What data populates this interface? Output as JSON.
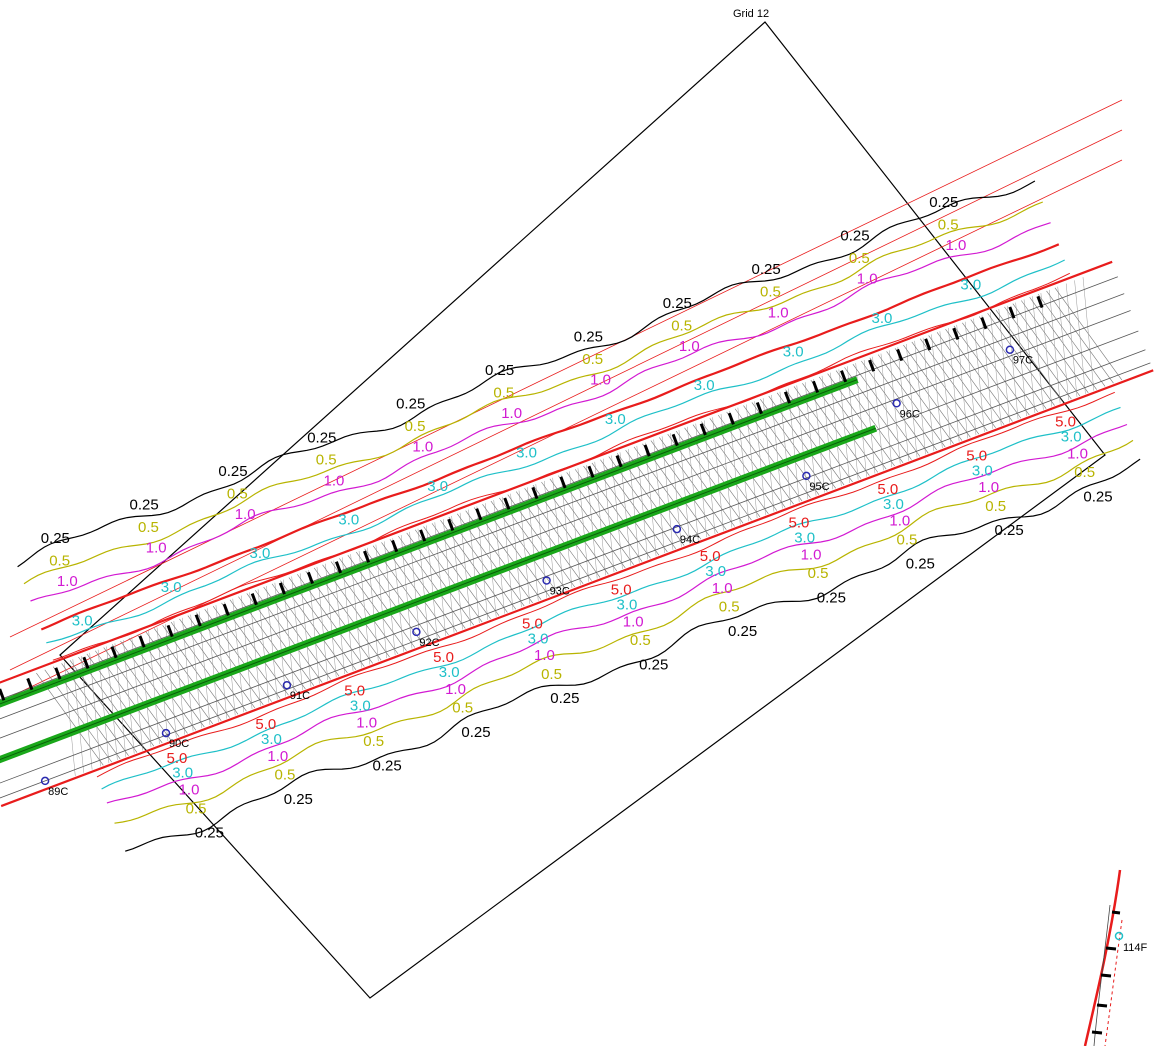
{
  "grid_title": "Grid 12",
  "colors": {
    "c025": "#000000",
    "c05": "#b8b400",
    "c10": "#d21ad2",
    "c30": "#1fc0c8",
    "c50": "#e81c1c",
    "row": "#1aa81a",
    "track": "#e81c1c",
    "station": "#2a2ab0"
  },
  "contour_levels": [
    "0.25",
    "0.5",
    "1.0",
    "3.0",
    "5.0"
  ],
  "stations": [
    "89C",
    "90C",
    "91C",
    "92C",
    "93C",
    "94C",
    "95C",
    "96C",
    "97C",
    "114F"
  ]
}
